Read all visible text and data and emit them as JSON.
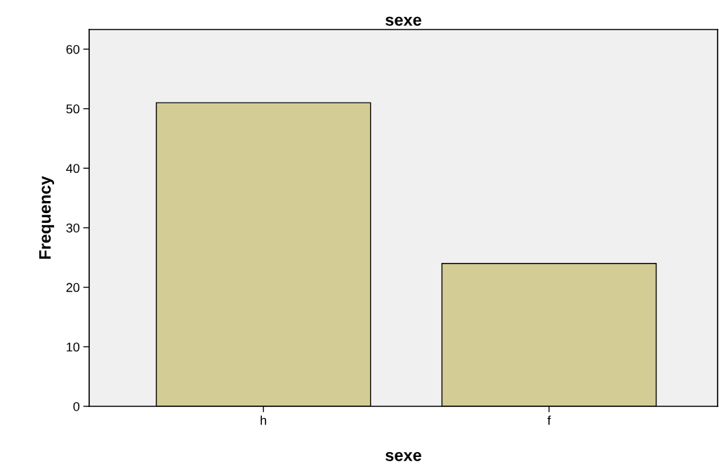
{
  "chart_data": {
    "type": "bar",
    "title": "sexe",
    "xlabel": "sexe",
    "ylabel": "Frequency",
    "categories": [
      "h",
      "f"
    ],
    "values": [
      51,
      24
    ],
    "color": "#d3cd95",
    "ylim": [
      0,
      63.3
    ],
    "yticks": [
      0,
      10,
      20,
      30,
      40,
      50,
      60
    ],
    "grid": false,
    "legend": false
  }
}
